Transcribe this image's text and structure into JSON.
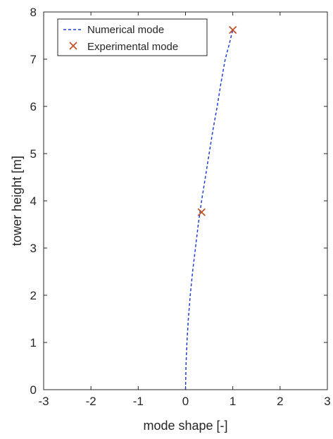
{
  "chart_data": {
    "type": "line",
    "xlabel": "mode shape [-]",
    "ylabel": "tower height [m]",
    "xlim": [
      -3,
      3
    ],
    "ylim": [
      0,
      8
    ],
    "xticks": [
      "-3",
      "-2",
      "-1",
      "0",
      "1",
      "2",
      "3"
    ],
    "yticks": [
      "0",
      "1",
      "2",
      "3",
      "4",
      "5",
      "6",
      "7",
      "8"
    ],
    "grid": false,
    "legend_position": "top-left",
    "series": [
      {
        "name": "Numerical mode",
        "style": "dashed",
        "color": "#1f3fd1",
        "x": [
          0.0,
          0.01,
          0.03,
          0.06,
          0.1,
          0.15,
          0.21,
          0.27,
          0.34,
          0.42,
          0.5,
          0.58,
          0.67,
          0.75,
          0.84,
          0.92,
          1.0
        ],
        "y": [
          0.0,
          0.5,
          1.0,
          1.5,
          2.0,
          2.5,
          3.0,
          3.5,
          4.0,
          4.5,
          5.0,
          5.5,
          6.0,
          6.5,
          7.0,
          7.3,
          7.62
        ]
      },
      {
        "name": "Experimental mode",
        "style": "markers",
        "marker": "x",
        "color": "#c0522b",
        "x": [
          0.34,
          1.0
        ],
        "y": [
          3.76,
          7.62
        ]
      }
    ]
  }
}
